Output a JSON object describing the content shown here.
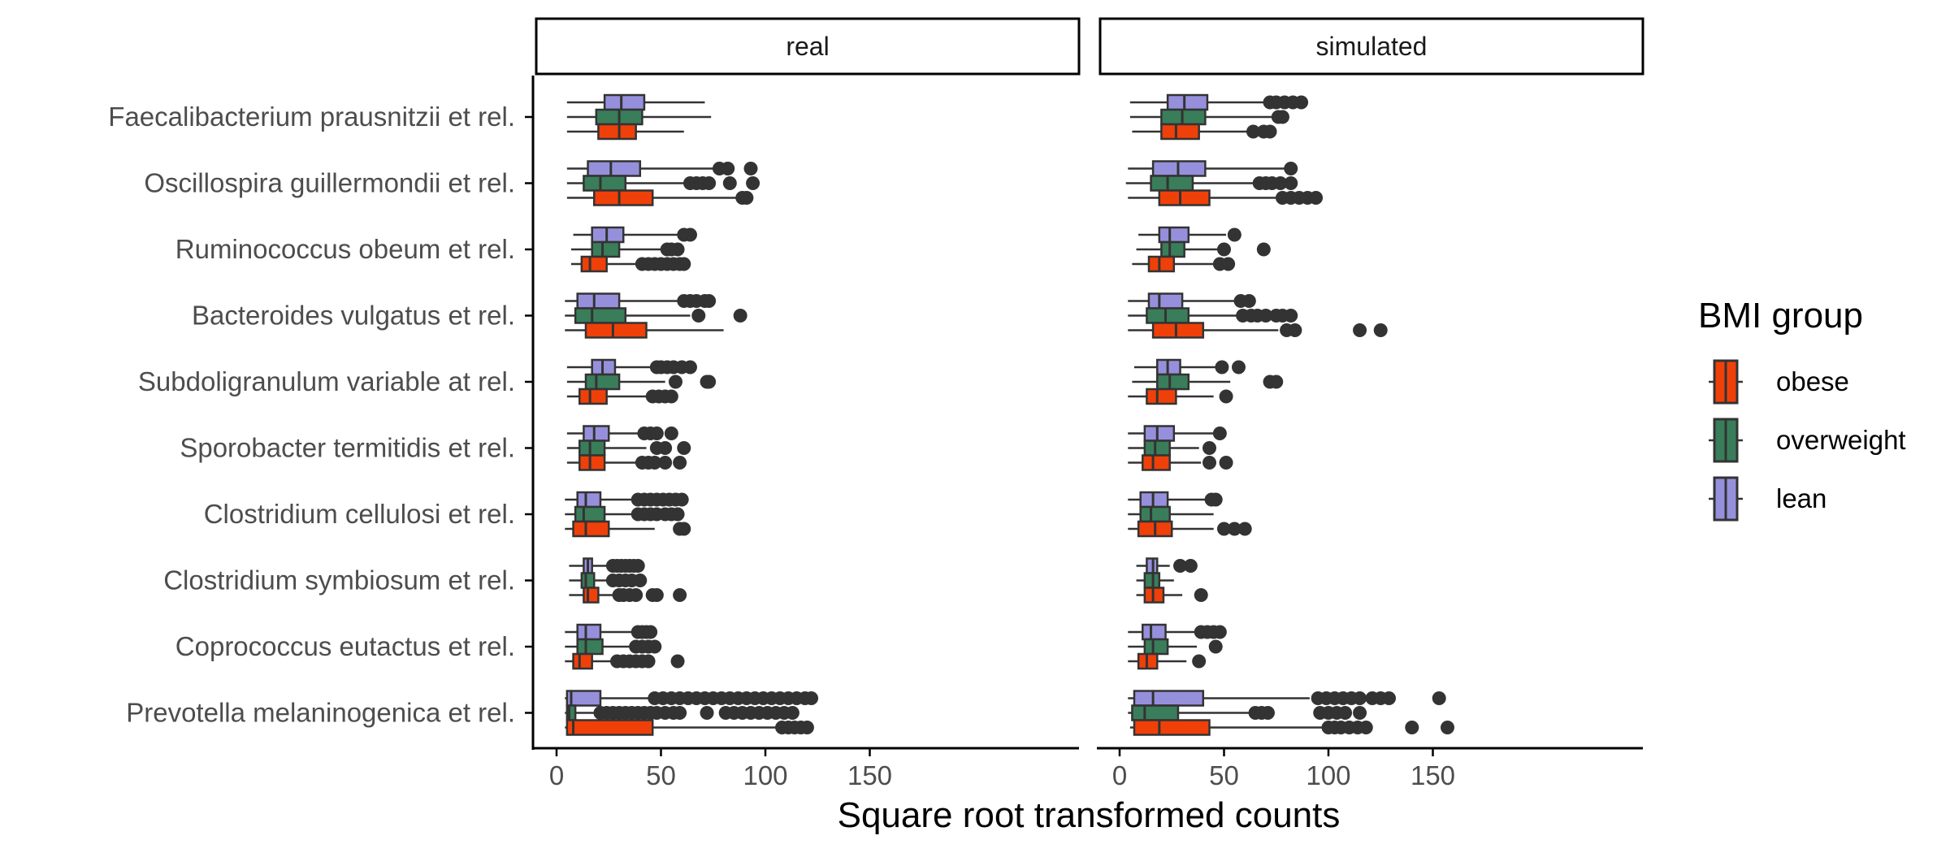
{
  "chart_data": {
    "type": "boxplot",
    "xlabel": "Square root transformed counts",
    "ylabel": "",
    "xlim": [
      -8,
      165
    ],
    "x_ticks": [
      0,
      50,
      100,
      150
    ],
    "facets": [
      "real",
      "simulated"
    ],
    "taxa": [
      "Faecalibacterium prausnitzii et rel.",
      "Oscillospira guillermondii et rel.",
      "Ruminococcus obeum et rel.",
      "Bacteroides vulgatus et rel.",
      "Subdoligranulum variable at rel.",
      "Sporobacter termitidis et rel.",
      "Clostridium cellulosi et rel.",
      "Clostridium symbiosum et rel.",
      "Coprococcus eutactus et rel.",
      "Prevotella melaninogenica et rel."
    ],
    "legend": {
      "title": "BMI group",
      "position": "right",
      "entries": [
        {
          "label": "obese",
          "color": "#F0400A"
        },
        {
          "label": "overweight",
          "color": "#3A7D5A"
        },
        {
          "label": "lean",
          "color": "#9690DC"
        }
      ]
    },
    "colors": {
      "lean": "#9690DC",
      "overweight": "#3A7D5A",
      "obese": "#F0400A",
      "outline": "#333333",
      "outlier": "#333333"
    },
    "series": {
      "real": [
        [
          {
            "group": "lean",
            "whisker_low": 5,
            "q1": 23,
            "median": 31,
            "q3": 42,
            "whisker_high": 71,
            "outliers": []
          },
          {
            "group": "overweight",
            "whisker_low": 5,
            "q1": 19,
            "median": 30,
            "q3": 41,
            "whisker_high": 74,
            "outliers": []
          },
          {
            "group": "obese",
            "whisker_low": 5,
            "q1": 20,
            "median": 30,
            "q3": 38,
            "whisker_high": 61,
            "outliers": []
          }
        ],
        [
          {
            "group": "lean",
            "whisker_low": 5,
            "q1": 15,
            "median": 26,
            "q3": 40,
            "whisker_high": 77,
            "outliers": [
              78,
              82,
              93
            ]
          },
          {
            "group": "overweight",
            "whisker_low": 5,
            "q1": 13,
            "median": 21,
            "q3": 33,
            "whisker_high": 62,
            "outliers": [
              64,
              67,
              70,
              73,
              83,
              94
            ]
          },
          {
            "group": "obese",
            "whisker_low": 5,
            "q1": 18,
            "median": 30,
            "q3": 46,
            "whisker_high": 87,
            "outliers": [
              89,
              91
            ]
          }
        ],
        [
          {
            "group": "lean",
            "whisker_low": 8,
            "q1": 17,
            "median": 24,
            "q3": 32,
            "whisker_high": 59,
            "outliers": [
              61,
              64
            ]
          },
          {
            "group": "overweight",
            "whisker_low": 7,
            "q1": 17,
            "median": 22,
            "q3": 30,
            "whisker_high": 51,
            "outliers": [
              53,
              55,
              58
            ]
          },
          {
            "group": "obese",
            "whisker_low": 7,
            "q1": 12,
            "median": 16,
            "q3": 24,
            "whisker_high": 39,
            "outliers": [
              41,
              44,
              47,
              50,
              53,
              56,
              59,
              61
            ]
          }
        ],
        [
          {
            "group": "lean",
            "whisker_low": 4,
            "q1": 10,
            "median": 18,
            "q3": 30,
            "whisker_high": 59,
            "outliers": [
              61,
              64,
              67,
              71,
              73
            ]
          },
          {
            "group": "overweight",
            "whisker_low": 4,
            "q1": 9,
            "median": 17,
            "q3": 33,
            "whisker_high": 64,
            "outliers": [
              68,
              88
            ]
          },
          {
            "group": "obese",
            "whisker_low": 4,
            "q1": 14,
            "median": 27,
            "q3": 43,
            "whisker_high": 80,
            "outliers": []
          }
        ],
        [
          {
            "group": "lean",
            "whisker_low": 5,
            "q1": 17,
            "median": 22,
            "q3": 28,
            "whisker_high": 46,
            "outliers": [
              48,
              50,
              53,
              56,
              60,
              64
            ]
          },
          {
            "group": "overweight",
            "whisker_low": 5,
            "q1": 14,
            "median": 19,
            "q3": 30,
            "whisker_high": 52,
            "outliers": [
              57,
              72,
              73
            ]
          },
          {
            "group": "obese",
            "whisker_low": 5,
            "q1": 11,
            "median": 16,
            "q3": 24,
            "whisker_high": 43,
            "outliers": [
              46,
              49,
              52,
              55
            ]
          }
        ],
        [
          {
            "group": "lean",
            "whisker_low": 5,
            "q1": 13,
            "median": 18,
            "q3": 25,
            "whisker_high": 40,
            "outliers": [
              42,
              45,
              48,
              55
            ]
          },
          {
            "group": "overweight",
            "whisker_low": 5,
            "q1": 11,
            "median": 16,
            "q3": 23,
            "whisker_high": 43,
            "outliers": [
              48,
              52,
              61
            ]
          },
          {
            "group": "obese",
            "whisker_low": 5,
            "q1": 11,
            "median": 16,
            "q3": 23,
            "whisker_high": 38,
            "outliers": [
              41,
              44,
              47,
              52,
              59
            ]
          }
        ],
        [
          {
            "group": "lean",
            "whisker_low": 4,
            "q1": 10,
            "median": 14,
            "q3": 21,
            "whisker_high": 36,
            "outliers": [
              39,
              42,
              45,
              48,
              51,
              54,
              57,
              60
            ]
          },
          {
            "group": "overweight",
            "whisker_low": 4,
            "q1": 9,
            "median": 13,
            "q3": 23,
            "whisker_high": 36,
            "outliers": [
              39,
              42,
              45,
              48,
              52,
              55,
              58
            ]
          },
          {
            "group": "obese",
            "whisker_low": 4,
            "q1": 8,
            "median": 14,
            "q3": 25,
            "whisker_high": 47,
            "outliers": [
              59,
              61
            ]
          }
        ],
        [
          {
            "group": "lean",
            "whisker_low": 6,
            "q1": 13,
            "median": 15,
            "q3": 17,
            "whisker_high": 24,
            "outliers": [
              27,
              29,
              31,
              33,
              35,
              37,
              39
            ]
          },
          {
            "group": "overweight",
            "whisker_low": 6,
            "q1": 12,
            "median": 14,
            "q3": 18,
            "whisker_high": 24,
            "outliers": [
              27,
              30,
              33,
              36,
              40
            ]
          },
          {
            "group": "obese",
            "whisker_low": 6,
            "q1": 13,
            "median": 15,
            "q3": 20,
            "whisker_high": 27,
            "outliers": [
              30,
              32,
              35,
              38,
              46,
              48,
              59
            ]
          }
        ],
        [
          {
            "group": "lean",
            "whisker_low": 4,
            "q1": 10,
            "median": 14,
            "q3": 21,
            "whisker_high": 37,
            "outliers": [
              39,
              41,
              43,
              45
            ]
          },
          {
            "group": "overweight",
            "whisker_low": 4,
            "q1": 10,
            "median": 14,
            "q3": 22,
            "whisker_high": 36,
            "outliers": [
              38,
              41,
              44,
              47
            ]
          },
          {
            "group": "obese",
            "whisker_low": 4,
            "q1": 8,
            "median": 11,
            "q3": 17,
            "whisker_high": 27,
            "outliers": [
              29,
              32,
              35,
              38,
              41,
              44,
              58
            ]
          }
        ],
        [
          {
            "group": "lean",
            "whisker_low": 4,
            "q1": 5,
            "median": 7,
            "q3": 21,
            "whisker_high": 44,
            "outliers": [
              47,
              51,
              55,
              59,
              63,
              67,
              71,
              75,
              79,
              83,
              87,
              91,
              95,
              99,
              103,
              107,
              111,
              115,
              119,
              122
            ]
          },
          {
            "group": "overweight",
            "whisker_low": 4,
            "q1": 5,
            "median": 6,
            "q3": 9,
            "whisker_high": 18,
            "outliers": [
              21,
              24,
              27,
              30,
              33,
              36,
              39,
              42,
              45,
              48,
              52,
              56,
              59,
              72,
              81,
              85,
              89,
              93,
              97,
              101,
              105,
              109,
              113
            ]
          },
          {
            "group": "obese",
            "whisker_low": 4,
            "q1": 5,
            "median": 8,
            "q3": 46,
            "whisker_high": 105,
            "outliers": [
              108,
              111,
              114,
              117,
              120
            ]
          }
        ]
      ],
      "simulated": [
        [
          {
            "group": "lean",
            "whisker_low": 5,
            "q1": 23,
            "median": 31,
            "q3": 42,
            "whisker_high": 70,
            "outliers": [
              72,
              75,
              79,
              83,
              87
            ]
          },
          {
            "group": "overweight",
            "whisker_low": 5,
            "q1": 20,
            "median": 30,
            "q3": 41,
            "whisker_high": 74,
            "outliers": [
              76,
              78
            ]
          },
          {
            "group": "obese",
            "whisker_low": 6,
            "q1": 20,
            "median": 27,
            "q3": 38,
            "whisker_high": 62,
            "outliers": [
              64,
              69,
              72
            ]
          }
        ],
        [
          {
            "group": "lean",
            "whisker_low": 4,
            "q1": 16,
            "median": 28,
            "q3": 41,
            "whisker_high": 80,
            "outliers": [
              82
            ]
          },
          {
            "group": "overweight",
            "whisker_low": 3,
            "q1": 15,
            "median": 23,
            "q3": 35,
            "whisker_high": 64,
            "outliers": [
              67,
              70,
              73,
              77,
              82
            ]
          },
          {
            "group": "obese",
            "whisker_low": 4,
            "q1": 19,
            "median": 29,
            "q3": 43,
            "whisker_high": 76,
            "outliers": [
              78,
              82,
              86,
              90,
              94
            ]
          }
        ],
        [
          {
            "group": "lean",
            "whisker_low": 9,
            "q1": 19,
            "median": 24,
            "q3": 33,
            "whisker_high": 51,
            "outliers": [
              55
            ]
          },
          {
            "group": "overweight",
            "whisker_low": 8,
            "q1": 20,
            "median": 24,
            "q3": 31,
            "whisker_high": 47,
            "outliers": [
              50,
              69
            ]
          },
          {
            "group": "obese",
            "whisker_low": 6,
            "q1": 14,
            "median": 19,
            "q3": 26,
            "whisker_high": 45,
            "outliers": [
              48,
              52
            ]
          }
        ],
        [
          {
            "group": "lean",
            "whisker_low": 4,
            "q1": 14,
            "median": 19,
            "q3": 30,
            "whisker_high": 55,
            "outliers": [
              58,
              62
            ]
          },
          {
            "group": "overweight",
            "whisker_low": 4,
            "q1": 13,
            "median": 22,
            "q3": 33,
            "whisker_high": 56,
            "outliers": [
              59,
              63,
              66,
              70,
              75,
              78,
              82
            ]
          },
          {
            "group": "obese",
            "whisker_low": 4,
            "q1": 16,
            "median": 27,
            "q3": 40,
            "whisker_high": 76,
            "outliers": [
              80,
              84,
              115,
              125
            ]
          }
        ],
        [
          {
            "group": "lean",
            "whisker_low": 7,
            "q1": 18,
            "median": 23,
            "q3": 29,
            "whisker_high": 46,
            "outliers": [
              49,
              57
            ]
          },
          {
            "group": "overweight",
            "whisker_low": 6,
            "q1": 18,
            "median": 24,
            "q3": 33,
            "whisker_high": 53,
            "outliers": [
              72,
              75
            ]
          },
          {
            "group": "obese",
            "whisker_low": 4,
            "q1": 13,
            "median": 18,
            "q3": 27,
            "whisker_high": 45,
            "outliers": [
              51
            ]
          }
        ],
        [
          {
            "group": "lean",
            "whisker_low": 4,
            "q1": 12,
            "median": 18,
            "q3": 26,
            "whisker_high": 45,
            "outliers": [
              48
            ]
          },
          {
            "group": "overweight",
            "whisker_low": 4,
            "q1": 12,
            "median": 17,
            "q3": 24,
            "whisker_high": 38,
            "outliers": [
              43
            ]
          },
          {
            "group": "obese",
            "whisker_low": 4,
            "q1": 11,
            "median": 16,
            "q3": 24,
            "whisker_high": 39,
            "outliers": [
              43,
              51
            ]
          }
        ],
        [
          {
            "group": "lean",
            "whisker_low": 4,
            "q1": 10,
            "median": 16,
            "q3": 23,
            "whisker_high": 42,
            "outliers": [
              44,
              46
            ]
          },
          {
            "group": "overweight",
            "whisker_low": 4,
            "q1": 10,
            "median": 15,
            "q3": 24,
            "whisker_high": 45,
            "outliers": []
          },
          {
            "group": "obese",
            "whisker_low": 4,
            "q1": 9,
            "median": 17,
            "q3": 25,
            "whisker_high": 45,
            "outliers": [
              50,
              55,
              60
            ]
          }
        ],
        [
          {
            "group": "lean",
            "whisker_low": 8,
            "q1": 13,
            "median": 16,
            "q3": 18,
            "whisker_high": 24,
            "outliers": [
              29,
              34
            ]
          },
          {
            "group": "overweight",
            "whisker_low": 8,
            "q1": 12,
            "median": 16,
            "q3": 19,
            "whisker_high": 26,
            "outliers": []
          },
          {
            "group": "obese",
            "whisker_low": 8,
            "q1": 12,
            "median": 16,
            "q3": 21,
            "whisker_high": 30,
            "outliers": [
              39
            ]
          }
        ],
        [
          {
            "group": "lean",
            "whisker_low": 4,
            "q1": 11,
            "median": 15,
            "q3": 22,
            "whisker_high": 37,
            "outliers": [
              39,
              42,
              45,
              48
            ]
          },
          {
            "group": "overweight",
            "whisker_low": 4,
            "q1": 12,
            "median": 16,
            "q3": 23,
            "whisker_high": 37,
            "outliers": [
              46
            ]
          },
          {
            "group": "obese",
            "whisker_low": 4,
            "q1": 9,
            "median": 13,
            "q3": 18,
            "whisker_high": 32,
            "outliers": [
              38
            ]
          }
        ],
        [
          {
            "group": "lean",
            "whisker_low": 4,
            "q1": 7,
            "median": 16,
            "q3": 40,
            "whisker_high": 91,
            "outliers": [
              95,
              99,
              103,
              107,
              111,
              115,
              121,
              125,
              129,
              153
            ]
          },
          {
            "group": "overweight",
            "whisker_low": 4,
            "q1": 6,
            "median": 12,
            "q3": 28,
            "whisker_high": 62,
            "outliers": [
              65,
              68,
              71,
              96,
              100,
              104,
              108,
              115
            ]
          },
          {
            "group": "obese",
            "whisker_low": 5,
            "q1": 7,
            "median": 19,
            "q3": 43,
            "whisker_high": 97,
            "outliers": [
              100,
              103,
              106,
              110,
              114,
              118,
              140,
              157
            ]
          }
        ]
      ]
    }
  }
}
